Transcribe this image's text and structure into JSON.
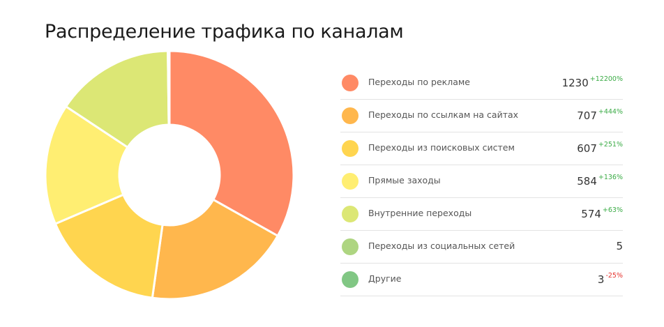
{
  "title": "Распределение трафика по каналам",
  "chart_data": {
    "type": "pie",
    "title": "Распределение трафика по каналам",
    "donut": true,
    "legend_position": "right",
    "slices": [
      {
        "label": "Переходы по рекламе",
        "value": 1230,
        "change": "+12200%",
        "color": "#ff8a65"
      },
      {
        "label": "Переходы по ссылкам на сайтах",
        "value": 707,
        "change": "+444%",
        "color": "#ffb74d"
      },
      {
        "label": "Переходы из поисковых систем",
        "value": 607,
        "change": "+251%",
        "color": "#ffd54f"
      },
      {
        "label": "Прямые заходы",
        "value": 584,
        "change": "+136%",
        "color": "#ffee72"
      },
      {
        "label": "Внутренние переходы",
        "value": 574,
        "change": "+63%",
        "color": "#dce775"
      },
      {
        "label": "Переходы из социальных сетей",
        "value": 5,
        "change": "",
        "color": "#aed581"
      },
      {
        "label": "Другие",
        "value": 3,
        "change": "-25%",
        "color": "#81c784"
      }
    ]
  }
}
